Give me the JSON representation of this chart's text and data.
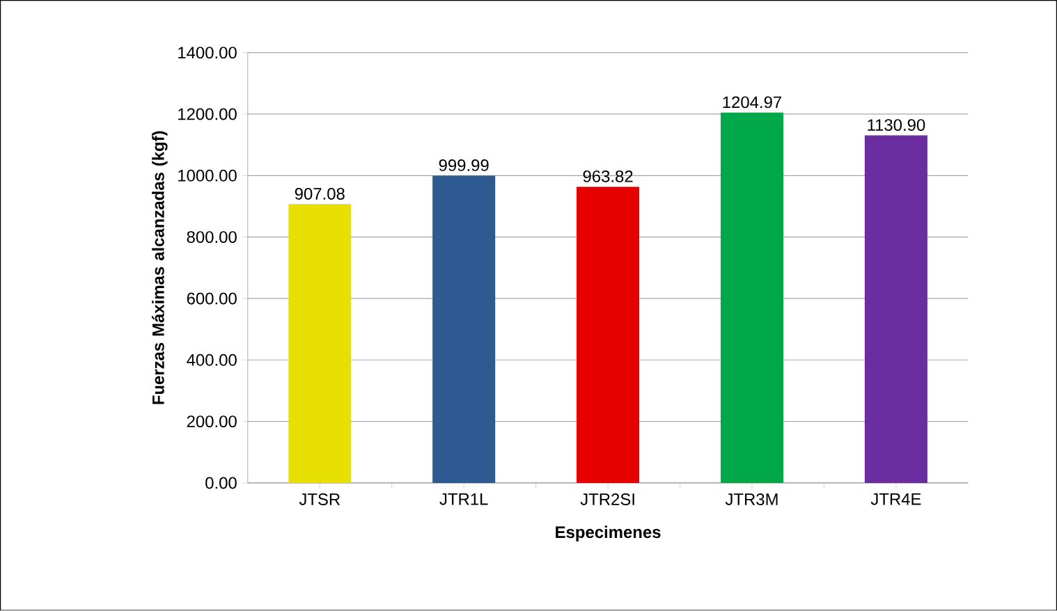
{
  "chart_data": {
    "type": "bar",
    "xlabel": "Especimenes",
    "ylabel": "Fuerzas Máximas alcanzadas (kgf)",
    "categories": [
      "JTSR",
      "JTR1L",
      "JTR2SI",
      "JTR3M",
      "JTR4E"
    ],
    "values": [
      907.08,
      999.99,
      963.82,
      1204.97,
      1130.9
    ],
    "value_labels": [
      "907.08",
      "999.99",
      "963.82",
      "1204.97",
      "1130.90"
    ],
    "colors": [
      "#e6df00",
      "#2d5a90",
      "#e60000",
      "#00a84a",
      "#6a2ea0"
    ],
    "ylim": [
      0,
      1400
    ],
    "yticks": [
      {
        "value": 0,
        "label": "0.00"
      },
      {
        "value": 200,
        "label": "200.00"
      },
      {
        "value": 400,
        "label": "400.00"
      },
      {
        "value": 600,
        "label": "600.00"
      },
      {
        "value": 800,
        "label": "800.00"
      },
      {
        "value": 1000,
        "label": "1000.00"
      },
      {
        "value": 1200,
        "label": "1200.00"
      },
      {
        "value": 1400,
        "label": "1400.00"
      }
    ],
    "grid": "y"
  }
}
